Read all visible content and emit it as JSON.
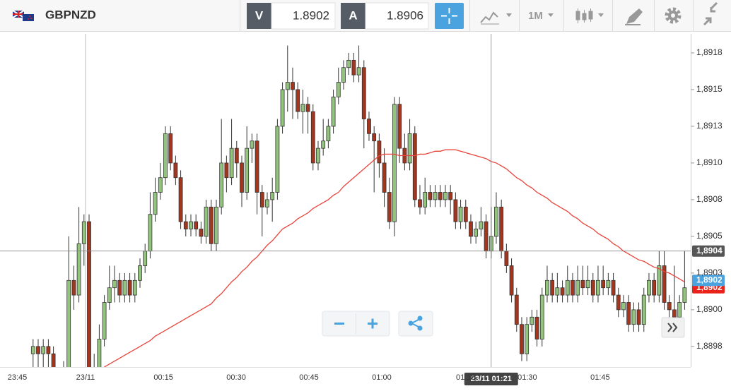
{
  "toolbar": {
    "symbol": "GBPNZD",
    "bid": {
      "label": "V",
      "value": "1.8902"
    },
    "ask": {
      "label": "A",
      "value": "1.8906"
    },
    "timeframe": "1M"
  },
  "chart_data": {
    "type": "candlestick",
    "up_color": "#93c47d",
    "down_color": "#a3361f",
    "ma_color": "#e8453c",
    "xlim": [
      -6.5,
      129.2
    ],
    "ylim": [
      1.88961,
      1.89187
    ],
    "xticks": [
      {
        "value": -3.1,
        "label": "23:45"
      },
      {
        "value": 10.3,
        "label": "23/11"
      },
      {
        "value": 25.6,
        "label": "00:15"
      },
      {
        "value": 39.9,
        "label": "00:30"
      },
      {
        "value": 54.2,
        "label": "00:45"
      },
      {
        "value": 68.5,
        "label": "01:00"
      },
      {
        "value": 85,
        "label": "01:15"
      },
      {
        "value": 97.1,
        "label": "01:30"
      },
      {
        "value": 111.4,
        "label": "01:45"
      }
    ],
    "yticks": [
      {
        "value": 1.89175,
        "label": "1,8918"
      },
      {
        "value": 1.8915,
        "label": "1,8915"
      },
      {
        "value": 1.89125,
        "label": "1,8913"
      },
      {
        "value": 1.891,
        "label": "1,8910"
      },
      {
        "value": 1.89075,
        "label": "1,8908"
      },
      {
        "value": 1.8905,
        "label": "1,8905"
      },
      {
        "value": 1.89025,
        "label": "1,8903"
      },
      {
        "value": 1.89,
        "label": "1,8900"
      },
      {
        "value": 1.88975,
        "label": "1,8898"
      }
    ],
    "grid": false,
    "ohlc": [
      [
        1.8897,
        1.8898,
        1.8896,
        1.88975
      ],
      [
        1.88975,
        1.8898,
        1.8896,
        1.8897
      ],
      [
        1.8897,
        1.8898,
        1.8896,
        1.88975
      ],
      [
        1.88975,
        1.8898,
        1.8896,
        1.8897
      ],
      [
        1.8897,
        1.88975,
        1.88945,
        1.8895
      ],
      [
        1.8895,
        1.88955,
        1.8894,
        1.88945
      ],
      [
        1.88945,
        1.88965,
        1.8894,
        1.8896
      ],
      [
        1.8896,
        1.8905,
        1.88955,
        1.8902
      ],
      [
        1.8902,
        1.8903,
        1.89,
        1.8901
      ],
      [
        1.8901,
        1.8907,
        1.89005,
        1.89045
      ],
      [
        1.89045,
        1.89065,
        1.8903,
        1.8906
      ],
      [
        1.8906,
        1.89065,
        1.8895,
        1.8896
      ],
      [
        1.8896,
        1.8897,
        1.88945,
        1.88955
      ],
      [
        1.88955,
        1.8899,
        1.8895,
        1.8898
      ],
      [
        1.8898,
        1.8901,
        1.88975,
        1.89005
      ],
      [
        1.89005,
        1.8903,
        1.89,
        1.89015
      ],
      [
        1.89015,
        1.8903,
        1.89005,
        1.8902
      ],
      [
        1.8902,
        1.89025,
        1.89005,
        1.8901
      ],
      [
        1.8901,
        1.89025,
        1.89005,
        1.8902
      ],
      [
        1.8902,
        1.89025,
        1.89005,
        1.8901
      ],
      [
        1.8901,
        1.89025,
        1.89005,
        1.8902
      ],
      [
        1.8902,
        1.89035,
        1.89015,
        1.8903
      ],
      [
        1.8903,
        1.89045,
        1.89025,
        1.8904
      ],
      [
        1.8904,
        1.8908,
        1.89035,
        1.89065
      ],
      [
        1.89065,
        1.8909,
        1.8906,
        1.8908
      ],
      [
        1.8908,
        1.891,
        1.89075,
        1.8909
      ],
      [
        1.8909,
        1.89125,
        1.89085,
        1.8912
      ],
      [
        1.8912,
        1.89125,
        1.89095,
        1.891
      ],
      [
        1.891,
        1.89105,
        1.89085,
        1.8909
      ],
      [
        1.8909,
        1.89095,
        1.89055,
        1.8906
      ],
      [
        1.8906,
        1.89065,
        1.8905,
        1.89055
      ],
      [
        1.89055,
        1.89065,
        1.8905,
        1.8906
      ],
      [
        1.8906,
        1.89065,
        1.8905,
        1.89055
      ],
      [
        1.89055,
        1.8906,
        1.89045,
        1.8905
      ],
      [
        1.8905,
        1.89075,
        1.89045,
        1.8907
      ],
      [
        1.8907,
        1.89075,
        1.8904,
        1.89045
      ],
      [
        1.89045,
        1.89075,
        1.8904,
        1.8907
      ],
      [
        1.8907,
        1.8913,
        1.89065,
        1.891
      ],
      [
        1.891,
        1.89105,
        1.8908,
        1.8909
      ],
      [
        1.8909,
        1.8913,
        1.89085,
        1.8911
      ],
      [
        1.8911,
        1.89115,
        1.8909,
        1.891
      ],
      [
        1.891,
        1.89105,
        1.8907,
        1.8908
      ],
      [
        1.8908,
        1.89125,
        1.89075,
        1.8911
      ],
      [
        1.8911,
        1.8912,
        1.891,
        1.89115
      ],
      [
        1.89115,
        1.8912,
        1.89065,
        1.8908
      ],
      [
        1.8908,
        1.89085,
        1.8905,
        1.8907
      ],
      [
        1.8907,
        1.8908,
        1.89065,
        1.89075
      ],
      [
        1.89075,
        1.8909,
        1.8906,
        1.8908
      ],
      [
        1.8908,
        1.8913,
        1.89075,
        1.89125
      ],
      [
        1.89125,
        1.89155,
        1.8912,
        1.8915
      ],
      [
        1.8915,
        1.8918,
        1.89135,
        1.89155
      ],
      [
        1.89155,
        1.89165,
        1.8913,
        1.8915
      ],
      [
        1.8915,
        1.89155,
        1.8913,
        1.89135
      ],
      [
        1.89135,
        1.8915,
        1.8912,
        1.8914
      ],
      [
        1.8914,
        1.89145,
        1.8912,
        1.89135
      ],
      [
        1.89135,
        1.8914,
        1.89095,
        1.891
      ],
      [
        1.891,
        1.89115,
        1.89095,
        1.8911
      ],
      [
        1.8911,
        1.8913,
        1.89105,
        1.89115
      ],
      [
        1.89115,
        1.8913,
        1.8911,
        1.89125
      ],
      [
        1.89125,
        1.8915,
        1.8912,
        1.89145
      ],
      [
        1.89145,
        1.89165,
        1.8914,
        1.89155
      ],
      [
        1.89155,
        1.8917,
        1.8915,
        1.89165
      ],
      [
        1.89165,
        1.89175,
        1.8916,
        1.8917
      ],
      [
        1.8917,
        1.89175,
        1.89155,
        1.8916
      ],
      [
        1.8916,
        1.8918,
        1.89155,
        1.89165
      ],
      [
        1.89165,
        1.8917,
        1.8911,
        1.8913
      ],
      [
        1.8913,
        1.89135,
        1.89115,
        1.8912
      ],
      [
        1.8912,
        1.89125,
        1.8908,
        1.89115
      ],
      [
        1.89115,
        1.8912,
        1.8909,
        1.891
      ],
      [
        1.891,
        1.8911,
        1.8907,
        1.8908
      ],
      [
        1.8908,
        1.8909,
        1.89055,
        1.8906
      ],
      [
        1.8906,
        1.89145,
        1.8905,
        1.8914
      ],
      [
        1.8914,
        1.89145,
        1.891,
        1.8911
      ],
      [
        1.8911,
        1.8912,
        1.89095,
        1.891
      ],
      [
        1.891,
        1.8913,
        1.89095,
        1.8912
      ],
      [
        1.8912,
        1.89125,
        1.8907,
        1.89075
      ],
      [
        1.89075,
        1.89085,
        1.89065,
        1.8907
      ],
      [
        1.8907,
        1.8909,
        1.89065,
        1.8908
      ],
      [
        1.8908,
        1.89085,
        1.8907,
        1.89075
      ],
      [
        1.89075,
        1.89085,
        1.8907,
        1.8908
      ],
      [
        1.8908,
        1.89085,
        1.8907,
        1.89075
      ],
      [
        1.89075,
        1.89085,
        1.8907,
        1.8908
      ],
      [
        1.8908,
        1.89085,
        1.89065,
        1.89075
      ],
      [
        1.89075,
        1.8908,
        1.89055,
        1.8906
      ],
      [
        1.8906,
        1.89075,
        1.89055,
        1.8907
      ],
      [
        1.8907,
        1.89075,
        1.89055,
        1.8906
      ],
      [
        1.8906,
        1.89065,
        1.89045,
        1.8905
      ],
      [
        1.8905,
        1.8906,
        1.89045,
        1.89055
      ],
      [
        1.89055,
        1.8907,
        1.8905,
        1.8906
      ],
      [
        1.8906,
        1.89065,
        1.89035,
        1.8904
      ],
      [
        1.8904,
        1.8907,
        1.89035,
        1.8905
      ],
      [
        1.8905,
        1.8908,
        1.89045,
        1.8907
      ],
      [
        1.8907,
        1.89075,
        1.89035,
        1.8904
      ],
      [
        1.8904,
        1.89045,
        1.89025,
        1.8903
      ],
      [
        1.8903,
        1.89035,
        1.89005,
        1.8901
      ],
      [
        1.8901,
        1.89015,
        1.88985,
        1.8899
      ],
      [
        1.8899,
        1.88995,
        1.88965,
        1.8897
      ],
      [
        1.8897,
        1.88995,
        1.88965,
        1.8899
      ],
      [
        1.8899,
        1.89,
        1.88985,
        1.88995
      ],
      [
        1.88995,
        1.89,
        1.88975,
        1.8898
      ],
      [
        1.8898,
        1.89015,
        1.88975,
        1.8901
      ],
      [
        1.8901,
        1.8903,
        1.89005,
        1.8902
      ],
      [
        1.8902,
        1.89025,
        1.89005,
        1.8901
      ],
      [
        1.8901,
        1.89025,
        1.89005,
        1.89015
      ],
      [
        1.89015,
        1.8902,
        1.89005,
        1.8901
      ],
      [
        1.8901,
        1.8903,
        1.89005,
        1.8902
      ],
      [
        1.8902,
        1.89025,
        1.89005,
        1.8901
      ],
      [
        1.8901,
        1.8903,
        1.89005,
        1.8902
      ],
      [
        1.8902,
        1.8903,
        1.8901,
        1.89015
      ],
      [
        1.89015,
        1.8903,
        1.8901,
        1.8902
      ],
      [
        1.8902,
        1.89025,
        1.89005,
        1.8901
      ],
      [
        1.8901,
        1.8903,
        1.89005,
        1.8902
      ],
      [
        1.8902,
        1.8903,
        1.8901,
        1.89015
      ],
      [
        1.89015,
        1.89025,
        1.8901,
        1.8902
      ],
      [
        1.8902,
        1.89025,
        1.89005,
        1.8901
      ],
      [
        1.8901,
        1.89015,
        1.88995,
        1.89
      ],
      [
        1.89,
        1.8901,
        1.88995,
        1.89005
      ],
      [
        1.89005,
        1.8901,
        1.88985,
        1.8899
      ],
      [
        1.8899,
        1.89005,
        1.88985,
        1.89
      ],
      [
        1.89,
        1.89005,
        1.88985,
        1.8899
      ],
      [
        1.8899,
        1.89015,
        1.88985,
        1.8901
      ],
      [
        1.8901,
        1.89025,
        1.89005,
        1.8902
      ],
      [
        1.8902,
        1.89025,
        1.89005,
        1.8901
      ],
      [
        1.8901,
        1.8904,
        1.89005,
        1.8903
      ],
      [
        1.8903,
        1.8904,
        1.89,
        1.89005
      ],
      [
        1.89005,
        1.8901,
        1.88995,
        1.89
      ],
      [
        1.89,
        1.8903,
        1.8899,
        1.88995
      ],
      [
        1.88995,
        1.8901,
        1.8899,
        1.89005
      ],
      [
        1.89005,
        1.8904,
        1.89,
        1.89015
      ]
    ],
    "ma": [
      null,
      null,
      null,
      null,
      null,
      null,
      null,
      null,
      null,
      null,
      null,
      null,
      null,
      null,
      1.88961,
      1.88963,
      1.88965,
      1.88967,
      1.88969,
      1.88971,
      1.88973,
      1.88975,
      1.88977,
      1.88979,
      1.88982,
      1.88984,
      1.88986,
      1.88988,
      1.8899,
      1.88992,
      1.88994,
      1.88996,
      1.88998,
      1.89,
      1.89002,
      1.89004,
      1.89008,
      1.89011,
      1.89015,
      1.89019,
      1.89022,
      1.89026,
      1.89029,
      1.89033,
      1.89036,
      1.8904,
      1.89044,
      1.89047,
      1.89051,
      1.89055,
      1.89057,
      1.89059,
      1.89062,
      1.89064,
      1.89066,
      1.89069,
      1.89071,
      1.89073,
      1.89075,
      1.89078,
      1.8908,
      1.89084,
      1.89087,
      1.8909,
      1.89093,
      1.89096,
      1.89099,
      1.89102,
      1.89105,
      1.89106,
      1.89106,
      1.89106,
      1.89105,
      1.89105,
      1.89105,
      1.89105,
      1.89106,
      1.89106,
      1.89107,
      1.89108,
      1.89108,
      1.89109,
      1.89109,
      1.89109,
      1.89108,
      1.89107,
      1.89106,
      1.89105,
      1.89104,
      1.89103,
      1.89101,
      1.891,
      1.89098,
      1.89096,
      1.89093,
      1.8909,
      1.89088,
      1.89085,
      1.89083,
      1.8908,
      1.89078,
      1.89076,
      1.89073,
      1.89071,
      1.89069,
      1.89067,
      1.89064,
      1.89062,
      1.89059,
      1.89057,
      1.89055,
      1.89052,
      1.8905,
      1.89048,
      1.89045,
      1.89043,
      1.8904,
      1.89038,
      1.89036,
      1.89034,
      1.89033,
      1.89031,
      1.89029,
      1.89028,
      1.89026,
      1.89025,
      1.89023,
      1.89021,
      1.89019
    ],
    "price_labels": [
      {
        "value": 1.89015,
        "label": "1,8902",
        "color": "#e8231a"
      },
      {
        "value": 1.8902,
        "label": "1,8902",
        "color": "#4aa3df"
      }
    ],
    "crosshair": {
      "x": 90,
      "y": 1.8904,
      "x_label": "23/11 01:21",
      "y_label": "1,8904"
    }
  }
}
